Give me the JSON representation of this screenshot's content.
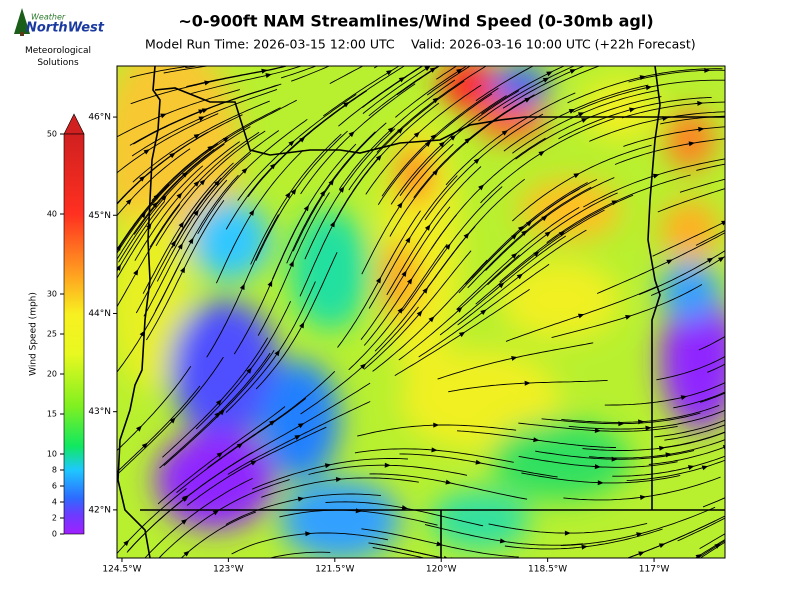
{
  "header": {
    "title": "~0-900ft NAM Streamlines/Wind Speed (0-30mb agl)",
    "model_run": "Model Run Time: 2026-03-15 12:00 UTC",
    "valid": "Valid: 2026-03-16 10:00 UTC  (+22h Forecast)"
  },
  "logo": {
    "brand_top": "Weather",
    "brand_main": "NorthWest",
    "tagline": "Meteorological Solutions"
  },
  "colorbar": {
    "label": "Wind Speed (mph)",
    "lim": [
      0,
      50
    ],
    "ticks": [
      0,
      2,
      4,
      6,
      8,
      10,
      15,
      20,
      25,
      30,
      40,
      50
    ]
  },
  "map": {
    "xlim": [
      -124.57,
      -116.0
    ],
    "ylim": [
      41.51,
      46.52
    ],
    "xticks": [
      {
        "value": -124.5,
        "label": "124.5°W"
      },
      {
        "value": -123,
        "label": "123°W"
      },
      {
        "value": -121.5,
        "label": "121.5°W"
      },
      {
        "value": -120,
        "label": "120°W"
      },
      {
        "value": -118.5,
        "label": "118.5°W"
      },
      {
        "value": -117,
        "label": "117°W"
      }
    ],
    "yticks": [
      {
        "value": 46,
        "label": "46°N"
      },
      {
        "value": 45,
        "label": "45°N"
      },
      {
        "value": 44,
        "label": "44°N"
      },
      {
        "value": 43,
        "label": "43°N"
      },
      {
        "value": 42,
        "label": "42°N"
      }
    ]
  }
}
